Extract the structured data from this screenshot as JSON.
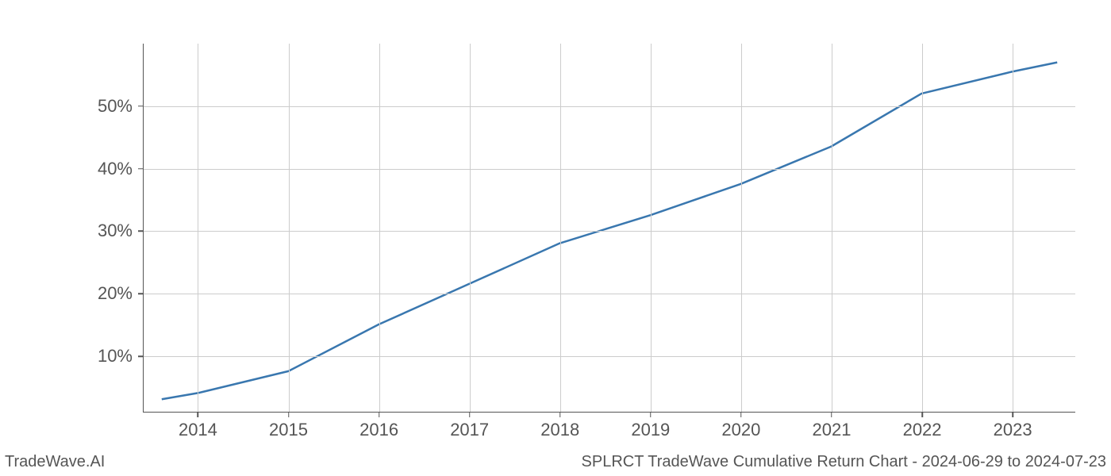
{
  "chart": {
    "type": "line",
    "background_color": "#ffffff",
    "grid_color": "#cccccc",
    "axis_color": "#555555",
    "tick_label_color": "#555555",
    "tick_label_fontsize": 22,
    "line_color": "#3977af",
    "line_width": 2.5,
    "x_values": [
      2013.6,
      2014,
      2015,
      2016,
      2017,
      2018,
      2019,
      2020,
      2021,
      2022,
      2023,
      2023.5
    ],
    "y_values": [
      3.0,
      4.0,
      7.5,
      15.0,
      21.5,
      28.0,
      32.5,
      37.5,
      43.5,
      52.0,
      55.5,
      57.0
    ],
    "x_ticks": [
      2014,
      2015,
      2016,
      2017,
      2018,
      2019,
      2020,
      2021,
      2022,
      2023
    ],
    "x_tick_labels": [
      "2014",
      "2015",
      "2016",
      "2017",
      "2018",
      "2019",
      "2020",
      "2021",
      "2022",
      "2023"
    ],
    "y_ticks": [
      10,
      20,
      30,
      40,
      50
    ],
    "y_tick_labels": [
      "10%",
      "20%",
      "30%",
      "40%",
      "50%"
    ],
    "xlim": [
      2013.4,
      2023.7
    ],
    "ylim": [
      1.0,
      60.0
    ]
  },
  "footer": {
    "left": "TradeWave.AI",
    "right": "SPLRCT TradeWave Cumulative Return Chart - 2024-06-29 to 2024-07-23",
    "color": "#555555",
    "fontsize": 20
  }
}
